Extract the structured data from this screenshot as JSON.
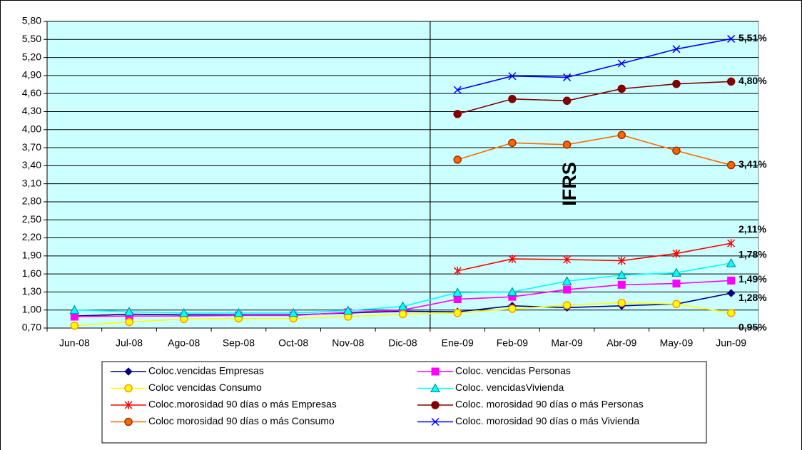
{
  "chart_data": {
    "type": "line",
    "categories": [
      "Jun-08",
      "Jul-08",
      "Ago-08",
      "Sep-08",
      "Oct-08",
      "Nov-08",
      "Dic-08",
      "Ene-09",
      "Feb-09",
      "Mar-09",
      "Abr-09",
      "May-09",
      "Jun-09"
    ],
    "ylim": [
      0.7,
      5.8
    ],
    "yticks": [
      {
        "value": 0.7,
        "label": "0,70"
      },
      {
        "value": 1.0,
        "label": "1,00"
      },
      {
        "value": 1.3,
        "label": "1,30"
      },
      {
        "value": 1.6,
        "label": "1,60"
      },
      {
        "value": 1.9,
        "label": "1,90"
      },
      {
        "value": 2.2,
        "label": "2,20"
      },
      {
        "value": 2.5,
        "label": "2,50"
      },
      {
        "value": 2.8,
        "label": "2,80"
      },
      {
        "value": 3.1,
        "label": "3,10"
      },
      {
        "value": 3.4,
        "label": "3,40"
      },
      {
        "value": 3.7,
        "label": "3,70"
      },
      {
        "value": 4.0,
        "label": "4,00"
      },
      {
        "value": 4.3,
        "label": "4,30"
      },
      {
        "value": 4.6,
        "label": "4,60"
      },
      {
        "value": 4.9,
        "label": "4,90"
      },
      {
        "value": 5.2,
        "label": "5,20"
      },
      {
        "value": 5.5,
        "label": "5,50"
      },
      {
        "value": 5.8,
        "label": "5,80"
      }
    ],
    "grid": true,
    "background": "#ccffff",
    "annotation": "IFRS",
    "series": [
      {
        "name": "Coloc.vencidas Empresas",
        "color": "#000080",
        "marker": "diamond",
        "marker_edge": "#000080",
        "values": [
          0.9,
          0.93,
          0.92,
          0.92,
          0.92,
          0.95,
          0.98,
          0.97,
          1.07,
          1.04,
          1.07,
          1.1,
          1.28
        ],
        "value_labels": [
          null,
          null,
          null,
          null,
          null,
          null,
          null,
          null,
          null,
          null,
          null,
          null,
          "1,28%"
        ]
      },
      {
        "name": "Coloc. vencidas Personas",
        "color": "#ff00ff",
        "marker": "square",
        "marker_edge": "#ff00ff",
        "values": [
          0.89,
          0.9,
          0.9,
          0.91,
          0.91,
          0.96,
          1.0,
          1.18,
          1.22,
          1.34,
          1.42,
          1.44,
          1.49
        ],
        "value_labels": [
          null,
          null,
          null,
          null,
          null,
          null,
          null,
          null,
          null,
          null,
          null,
          null,
          "1,49%"
        ]
      },
      {
        "name": "Coloc vencidas Consumo",
        "color": "#ffff00",
        "marker": "circle",
        "marker_edge": "#ff9900",
        "values": [
          0.74,
          0.8,
          0.85,
          0.86,
          0.86,
          0.89,
          0.93,
          0.95,
          1.02,
          1.08,
          1.12,
          1.1,
          0.95
        ],
        "value_labels": [
          null,
          null,
          null,
          null,
          null,
          null,
          null,
          null,
          null,
          null,
          null,
          null,
          "0,95%"
        ]
      },
      {
        "name": "Coloc. vencidasVivienda",
        "color": "#00ffff",
        "marker": "triangle",
        "marker_edge": "#008080",
        "values": [
          1.0,
          0.97,
          0.95,
          0.95,
          0.95,
          0.99,
          1.06,
          1.29,
          1.3,
          1.48,
          1.58,
          1.62,
          1.78
        ],
        "value_labels": [
          null,
          null,
          null,
          null,
          null,
          null,
          null,
          null,
          null,
          null,
          null,
          null,
          "1,78%"
        ]
      },
      {
        "name": "Coloc.morosidad 90 días o más Empresas",
        "color": "#ff0000",
        "marker": "asterisk",
        "marker_edge": "#ff0000",
        "values": [
          null,
          null,
          null,
          null,
          null,
          null,
          null,
          1.65,
          1.85,
          1.84,
          1.82,
          1.94,
          2.11
        ],
        "value_labels": [
          null,
          null,
          null,
          null,
          null,
          null,
          null,
          null,
          null,
          null,
          null,
          null,
          "2,11%"
        ]
      },
      {
        "name": "Coloc. morosidad 90 días o más Personas",
        "color": "#800000",
        "marker": "circle",
        "marker_edge": "#800000",
        "values": [
          null,
          null,
          null,
          null,
          null,
          null,
          null,
          4.26,
          4.51,
          4.48,
          4.68,
          4.76,
          4.8
        ],
        "value_labels": [
          null,
          null,
          null,
          null,
          null,
          null,
          null,
          null,
          null,
          null,
          null,
          null,
          "4,80%"
        ]
      },
      {
        "name": "Coloc morosidad 90 días o más Consumo",
        "color": "#ff6600",
        "marker": "circle",
        "marker_edge": "#993300",
        "values": [
          null,
          null,
          null,
          null,
          null,
          null,
          null,
          3.5,
          3.78,
          3.75,
          3.91,
          3.65,
          3.41
        ],
        "value_labels": [
          null,
          null,
          null,
          null,
          null,
          null,
          null,
          null,
          null,
          null,
          null,
          null,
          "3,41%"
        ]
      },
      {
        "name": "Coloc. morosidad 90 días o más Vivienda",
        "color": "#0000ff",
        "marker": "x",
        "marker_edge": "#0000ff",
        "values": [
          null,
          null,
          null,
          null,
          null,
          null,
          null,
          4.66,
          4.89,
          4.87,
          5.1,
          5.34,
          5.51
        ],
        "value_labels": [
          null,
          null,
          null,
          null,
          null,
          null,
          null,
          null,
          null,
          null,
          null,
          null,
          "5,51%"
        ]
      }
    ]
  }
}
